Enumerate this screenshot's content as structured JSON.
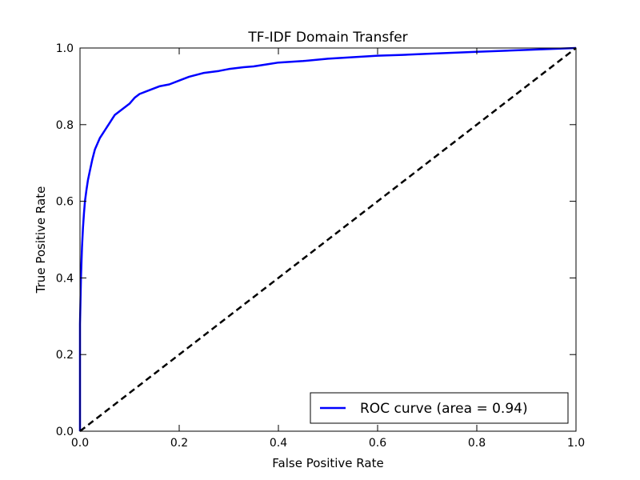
{
  "chart_data": {
    "type": "line",
    "title": "TF-IDF Domain Transfer",
    "xlabel": "False Positive Rate",
    "ylabel": "True Positive Rate",
    "xlim": [
      0.0,
      1.0
    ],
    "ylim": [
      0.0,
      1.0
    ],
    "xticks": [
      "0.0",
      "0.2",
      "0.4",
      "0.6",
      "0.8",
      "1.0"
    ],
    "yticks": [
      "0.0",
      "0.2",
      "0.4",
      "0.6",
      "0.8",
      "1.0"
    ],
    "grid": false,
    "legend_position": "lower-right",
    "series": [
      {
        "name": "ROC curve (area = 0.94)",
        "color": "#0000ff",
        "style": "solid",
        "x": [
          0.0,
          0.0,
          0.002,
          0.004,
          0.006,
          0.008,
          0.01,
          0.013,
          0.016,
          0.02,
          0.025,
          0.03,
          0.035,
          0.04,
          0.045,
          0.05,
          0.055,
          0.06,
          0.065,
          0.07,
          0.08,
          0.09,
          0.1,
          0.11,
          0.12,
          0.14,
          0.16,
          0.18,
          0.2,
          0.22,
          0.25,
          0.28,
          0.3,
          0.33,
          0.35,
          0.38,
          0.4,
          0.45,
          0.5,
          0.55,
          0.6,
          0.65,
          0.7,
          0.8,
          0.9,
          1.0
        ],
        "y": [
          0.0,
          0.28,
          0.4,
          0.48,
          0.53,
          0.57,
          0.6,
          0.63,
          0.655,
          0.68,
          0.71,
          0.735,
          0.75,
          0.765,
          0.775,
          0.785,
          0.795,
          0.805,
          0.815,
          0.825,
          0.835,
          0.845,
          0.855,
          0.87,
          0.88,
          0.89,
          0.9,
          0.905,
          0.915,
          0.925,
          0.935,
          0.94,
          0.945,
          0.95,
          0.952,
          0.958,
          0.962,
          0.966,
          0.972,
          0.976,
          0.98,
          0.982,
          0.985,
          0.99,
          0.995,
          1.0
        ]
      },
      {
        "name": "",
        "color": "#000000",
        "style": "dashed",
        "x": [
          0.0,
          1.0
        ],
        "y": [
          0.0,
          1.0
        ]
      }
    ]
  }
}
